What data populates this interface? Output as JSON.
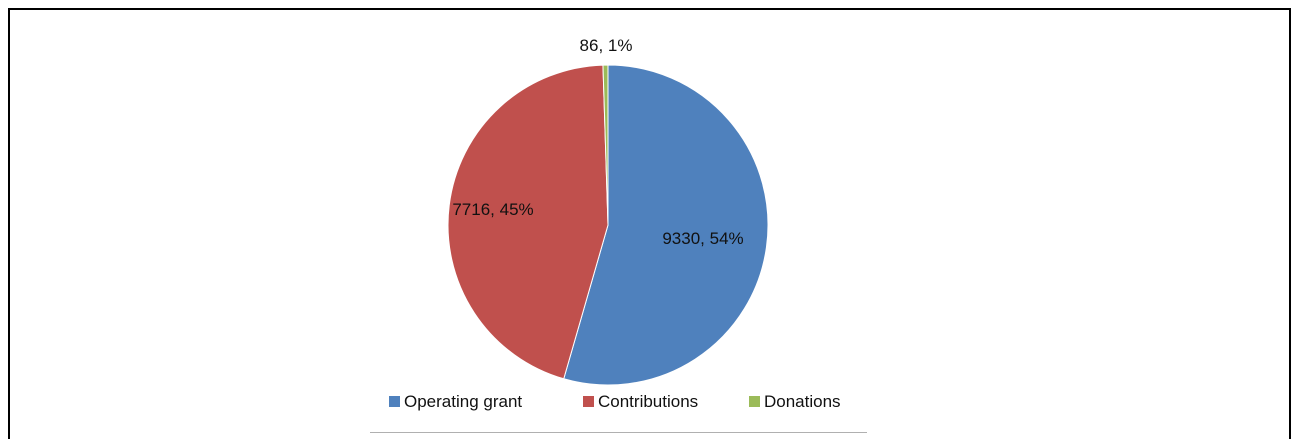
{
  "chart_data": {
    "type": "pie",
    "title": "",
    "slices": [
      {
        "name": "Operating grant",
        "value": 9330,
        "percent": 54,
        "label": "9330, 54%",
        "color": "#4F81BD"
      },
      {
        "name": "Contributions",
        "value": 7716,
        "percent": 45,
        "label": "7716, 45%",
        "color": "#C0504D"
      },
      {
        "name": "Donations",
        "value": 86,
        "percent": 1,
        "label": "86, 1%",
        "color": "#9BBB59"
      }
    ],
    "legend_position": "bottom",
    "start_angle_deg": 0,
    "direction": "clockwise"
  }
}
